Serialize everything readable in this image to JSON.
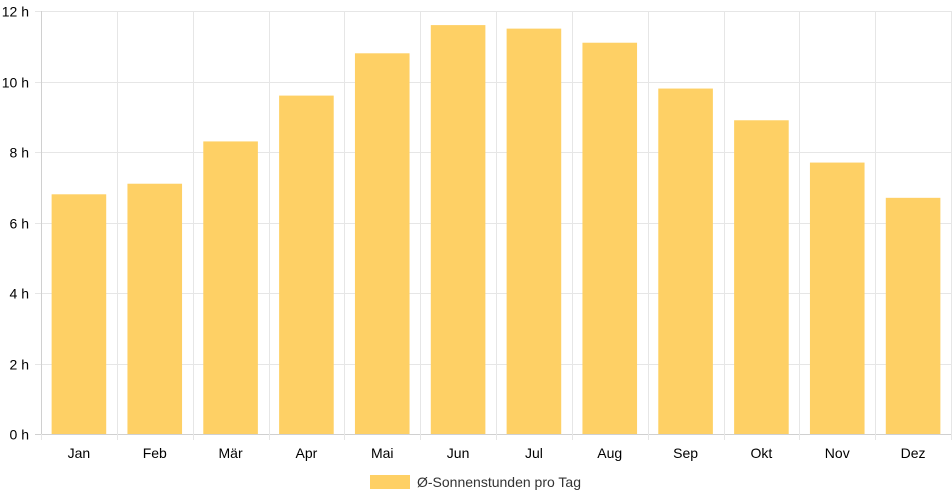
{
  "chart_data": {
    "type": "bar",
    "categories": [
      "Jan",
      "Feb",
      "Mär",
      "Apr",
      "Mai",
      "Jun",
      "Jul",
      "Aug",
      "Sep",
      "Okt",
      "Nov",
      "Dez"
    ],
    "series": [
      {
        "name": "Ø-Sonnenstunden pro Tag",
        "values": [
          6.8,
          7.1,
          8.3,
          9.6,
          10.8,
          11.6,
          11.5,
          11.1,
          9.8,
          8.9,
          7.7,
          6.7
        ],
        "color": "#fed065"
      }
    ],
    "title": "",
    "xlabel": "",
    "ylabel": "",
    "ylim": [
      0,
      12
    ],
    "yticks": [
      0,
      2,
      4,
      6,
      8,
      10,
      12
    ],
    "ytick_labels": [
      "0 h",
      "2 h",
      "4 h",
      "6 h",
      "8 h",
      "10 h",
      "12 h"
    ],
    "grid": true,
    "legend_position": "bottom-center"
  }
}
